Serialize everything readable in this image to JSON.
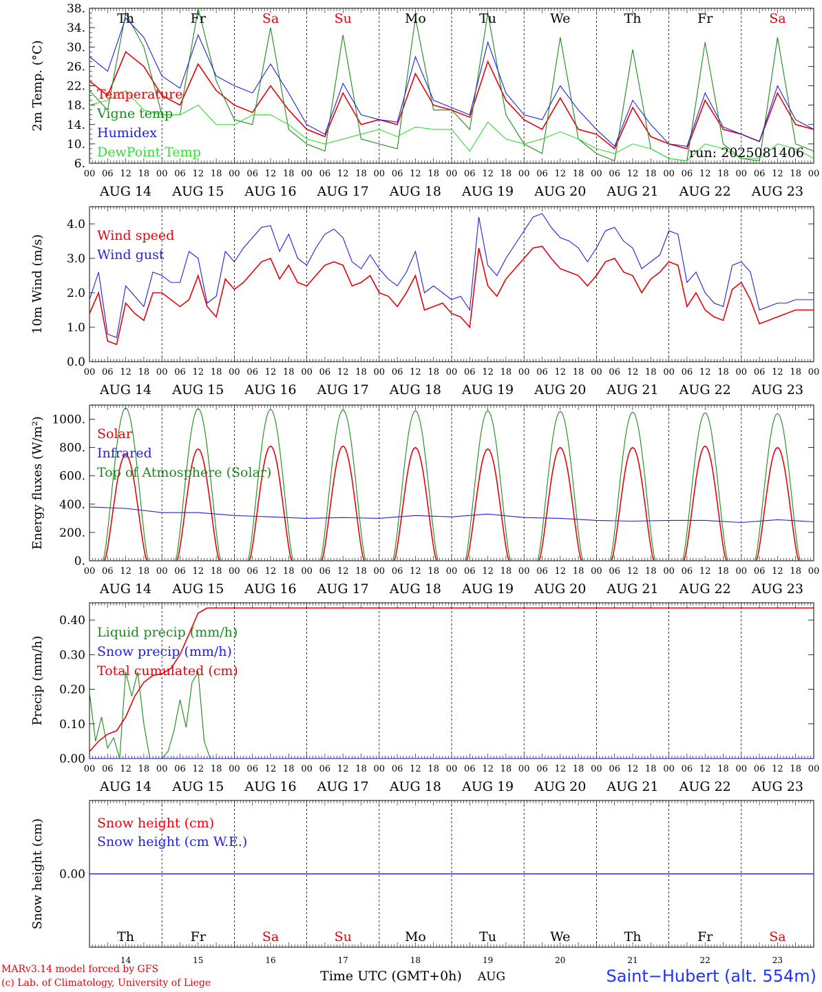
{
  "colors": {
    "red": "#e8000b",
    "green": "#1a8a1a",
    "blue": "#1f1fe0",
    "lightgreen": "#33dd33",
    "black": "#000000"
  },
  "credits": {
    "line1": "MARv3.14 model forced by GFS",
    "line2": "(c) Lab. of Climatology, University of Liege"
  },
  "station": "Saint−Hubert (alt. 554m)",
  "run": "run: 2025081406",
  "x_axis_title": "Time UTC (GMT+0h)",
  "month": "AUG",
  "day_labels": [
    "Th",
    "Fr",
    "Sa",
    "Su",
    "Mo",
    "Tu",
    "We",
    "Th",
    "Fr",
    "Sa"
  ],
  "weekend_days": [
    2,
    3,
    9
  ],
  "date_labels": [
    "AUG 14",
    "AUG 15",
    "AUG 16",
    "AUG 17",
    "AUG 18",
    "AUG 19",
    "AUG 20",
    "AUG 21",
    "AUG 22",
    "AUG 23"
  ],
  "day_numbers": [
    "14",
    "15",
    "16",
    "17",
    "18",
    "19",
    "20",
    "21",
    "22",
    "23"
  ],
  "hour_labels": [
    "00",
    "06",
    "12",
    "18"
  ],
  "chart_data": [
    {
      "type": "line",
      "ylabel": "2m Temp. (°C)",
      "ylim": [
        6,
        38
      ],
      "yticks": [
        "38.",
        "34.",
        "30.",
        "26.",
        "22.",
        "18.",
        "14.",
        "10.",
        "6."
      ],
      "x_unit": "hours since AUG 14 00 UTC",
      "xlim": [
        0,
        240
      ],
      "series": [
        {
          "name": "Temperature",
          "color": "red",
          "x": [
            0,
            6,
            12,
            18,
            24,
            30,
            36,
            42,
            48,
            54,
            60,
            66,
            72,
            78,
            84,
            90,
            96,
            102,
            108,
            114,
            120,
            126,
            132,
            138,
            144,
            150,
            156,
            162,
            168,
            174,
            180,
            186,
            192,
            198,
            204,
            210,
            216,
            222,
            228,
            234,
            240
          ],
          "y": [
            23,
            20,
            29,
            26,
            20,
            18,
            26.5,
            21,
            18,
            16.5,
            22,
            17,
            13,
            11.5,
            20.5,
            14,
            15,
            14,
            24.5,
            18,
            17,
            15.5,
            27,
            19,
            15,
            13,
            19.5,
            13,
            12,
            9,
            17.5,
            11.5,
            10,
            9,
            19,
            13,
            12,
            10.5,
            20.5,
            14,
            13
          ]
        },
        {
          "name": "Vigne temp",
          "color": "green",
          "x": [
            0,
            6,
            12,
            18,
            24,
            30,
            36,
            42,
            48,
            54,
            60,
            66,
            72,
            78,
            84,
            90,
            96,
            102,
            108,
            114,
            120,
            126,
            132,
            138,
            144,
            150,
            156,
            162,
            168,
            174,
            180,
            186,
            192,
            198,
            204,
            210,
            216,
            222,
            228,
            234,
            240
          ],
          "y": [
            21,
            17,
            37,
            30,
            16,
            16,
            38,
            23,
            15,
            14,
            34,
            13,
            10,
            8.5,
            32.5,
            11,
            10,
            9,
            36,
            17,
            17,
            13,
            37,
            16,
            10,
            8,
            32,
            11,
            8,
            6.5,
            29.5,
            9,
            7,
            6.5,
            31,
            10,
            7,
            6.5,
            32,
            10,
            8.5
          ]
        },
        {
          "name": "Humidex",
          "color": "blue",
          "x": [
            0,
            6,
            12,
            18,
            24,
            30,
            36,
            42,
            48,
            54,
            60,
            66,
            72,
            78,
            84,
            90,
            96,
            102,
            108,
            114,
            120,
            126,
            132,
            138,
            144,
            150,
            156,
            162,
            168,
            174,
            180,
            186,
            192,
            198,
            204,
            210,
            216,
            222,
            228,
            234,
            240
          ],
          "y": [
            28,
            25,
            36,
            32,
            24,
            21.5,
            32.5,
            24,
            22,
            20.5,
            26.5,
            20.5,
            14,
            12,
            22.5,
            16,
            15,
            14.5,
            28,
            19,
            17.5,
            16,
            31,
            20.5,
            16,
            15,
            22,
            17,
            13,
            9.5,
            19,
            14,
            10,
            9.5,
            20.5,
            13.5,
            12,
            10.5,
            22,
            15,
            13
          ]
        },
        {
          "name": "DewPoint Temp",
          "color": "lightgreen",
          "x": [
            0,
            6,
            12,
            18,
            24,
            30,
            36,
            42,
            48,
            54,
            60,
            66,
            72,
            78,
            84,
            90,
            96,
            102,
            108,
            114,
            120,
            126,
            132,
            138,
            144,
            150,
            156,
            162,
            168,
            174,
            180,
            186,
            192,
            198,
            204,
            210,
            216,
            222,
            228,
            234,
            240
          ],
          "y": [
            18,
            19,
            21,
            17,
            16,
            16,
            18,
            14,
            14,
            16,
            16,
            14,
            11,
            10,
            11,
            12,
            13,
            11.5,
            13.5,
            13,
            13,
            8.5,
            14.5,
            11,
            10,
            11,
            12.5,
            11,
            9,
            8,
            10,
            9,
            7,
            6.5,
            10,
            9,
            7,
            7,
            10,
            9,
            7
          ]
        }
      ]
    },
    {
      "type": "line",
      "ylabel": "10m Wind (m/s)",
      "ylim": [
        0,
        4.5
      ],
      "yticks": [
        "4.0",
        "3.0",
        "2.0",
        "1.0",
        "0.0"
      ],
      "yvals": [
        4,
        3,
        2,
        1,
        0
      ],
      "x_unit": "hours since AUG 14 00 UTC",
      "xlim": [
        0,
        240
      ],
      "series": [
        {
          "name": "Wind speed",
          "color": "red",
          "x": [
            0,
            3,
            6,
            9,
            12,
            15,
            18,
            21,
            24,
            27,
            30,
            33,
            36,
            39,
            42,
            45,
            48,
            51,
            54,
            57,
            60,
            63,
            66,
            69,
            72,
            75,
            78,
            81,
            84,
            87,
            90,
            93,
            96,
            99,
            102,
            105,
            108,
            111,
            114,
            117,
            120,
            123,
            126,
            129,
            132,
            135,
            138,
            141,
            144,
            147,
            150,
            153,
            156,
            159,
            162,
            165,
            168,
            171,
            174,
            177,
            180,
            183,
            186,
            189,
            192,
            195,
            198,
            201,
            204,
            207,
            210,
            213,
            216,
            219,
            222,
            225,
            228,
            231,
            234,
            237,
            240
          ],
          "y": [
            1.4,
            2.0,
            0.6,
            0.5,
            1.7,
            1.4,
            1.2,
            2.0,
            2.0,
            1.8,
            1.6,
            1.8,
            2.5,
            1.6,
            1.3,
            2.4,
            2.1,
            2.3,
            2.6,
            2.9,
            3.0,
            2.4,
            2.8,
            2.3,
            2.2,
            2.5,
            2.8,
            2.9,
            2.8,
            2.2,
            2.3,
            2.5,
            2.0,
            1.9,
            1.6,
            2.0,
            2.5,
            1.5,
            1.6,
            1.7,
            1.4,
            1.3,
            1.0,
            3.3,
            2.2,
            1.9,
            2.4,
            2.7,
            3.0,
            3.3,
            3.35,
            3.0,
            2.7,
            2.6,
            2.5,
            2.2,
            2.5,
            2.9,
            3.0,
            2.6,
            2.5,
            2.0,
            2.4,
            2.6,
            2.9,
            2.8,
            1.6,
            2.0,
            1.5,
            1.3,
            1.2,
            2.1,
            2.3,
            1.8,
            1.1,
            1.2,
            1.3,
            1.4,
            1.5,
            1.5,
            1.5
          ]
        },
        {
          "name": "Wind gust",
          "color": "blue",
          "x": [
            0,
            3,
            6,
            9,
            12,
            15,
            18,
            21,
            24,
            27,
            30,
            33,
            36,
            39,
            42,
            45,
            48,
            51,
            54,
            57,
            60,
            63,
            66,
            69,
            72,
            75,
            78,
            81,
            84,
            87,
            90,
            93,
            96,
            99,
            102,
            105,
            108,
            111,
            114,
            117,
            120,
            123,
            126,
            129,
            132,
            135,
            138,
            141,
            144,
            147,
            150,
            153,
            156,
            159,
            162,
            165,
            168,
            171,
            174,
            177,
            180,
            183,
            186,
            189,
            192,
            195,
            198,
            201,
            204,
            207,
            210,
            213,
            216,
            219,
            222,
            225,
            228,
            231,
            234,
            237,
            240
          ],
          "y": [
            1.8,
            2.6,
            0.8,
            0.7,
            2.2,
            1.9,
            1.6,
            2.6,
            2.5,
            2.3,
            2.3,
            3.2,
            3.0,
            1.7,
            1.9,
            3.2,
            2.9,
            3.3,
            3.6,
            3.9,
            3.95,
            3.2,
            3.7,
            3.0,
            2.8,
            3.3,
            3.7,
            3.85,
            3.6,
            2.9,
            2.7,
            3.1,
            2.7,
            2.4,
            2.2,
            2.6,
            3.2,
            2.0,
            2.2,
            2.0,
            1.8,
            1.9,
            1.5,
            4.2,
            2.8,
            2.5,
            3.0,
            3.4,
            3.8,
            4.2,
            4.3,
            3.9,
            3.6,
            3.5,
            3.3,
            2.9,
            3.3,
            3.8,
            3.9,
            3.5,
            3.3,
            2.7,
            2.9,
            3.1,
            3.8,
            3.7,
            2.3,
            2.6,
            2.0,
            1.7,
            1.6,
            2.8,
            2.9,
            2.6,
            1.5,
            1.6,
            1.7,
            1.7,
            1.8,
            1.8,
            1.8
          ]
        }
      ]
    },
    {
      "type": "line",
      "ylabel": "Energy fluxes (W/m²)",
      "ylim": [
        0,
        1100
      ],
      "yticks": [
        "1000.",
        "800.",
        "600.",
        "400.",
        "200.",
        "0."
      ],
      "yvals": [
        1000,
        800,
        600,
        400,
        200,
        0
      ],
      "x_unit": "hours since AUG 14 00 UTC",
      "xlim": [
        0,
        240
      ],
      "series": [
        {
          "name": "Solar",
          "color": "red",
          "daily_peak": [
            750,
            790,
            810,
            810,
            800,
            790,
            800,
            800,
            810,
            800
          ],
          "sunrise_h": 5,
          "sunset_h": 19
        },
        {
          "name": "Infrared",
          "color": "blue",
          "x": [
            0,
            12,
            24,
            36,
            48,
            60,
            72,
            84,
            96,
            108,
            120,
            132,
            144,
            156,
            168,
            180,
            192,
            204,
            216,
            228,
            240
          ],
          "y": [
            380,
            370,
            340,
            340,
            320,
            310,
            300,
            305,
            300,
            320,
            310,
            330,
            305,
            300,
            285,
            280,
            285,
            285,
            270,
            290,
            275
          ]
        },
        {
          "name": "Top of Atmosphere (Solar)",
          "color": "green",
          "daily_peak": [
            1080,
            1075,
            1070,
            1065,
            1060,
            1060,
            1055,
            1050,
            1045,
            1040
          ],
          "sunrise_h": 4.5,
          "sunset_h": 19.5
        }
      ]
    },
    {
      "type": "line",
      "ylabel": "Precip (mm/h)",
      "ylim": [
        0,
        0.45
      ],
      "yticks": [
        "0.40",
        "0.30",
        "0.20",
        "0.10",
        "0.00"
      ],
      "yvals": [
        0.4,
        0.3,
        0.2,
        0.1,
        0
      ],
      "x_unit": "hours since AUG 14 00 UTC",
      "xlim": [
        0,
        240
      ],
      "series": [
        {
          "name": "Liquid precip (mm/h)",
          "color": "green",
          "x": [
            0,
            2,
            4,
            6,
            8,
            10,
            12,
            14,
            16,
            18,
            20,
            22,
            24,
            26,
            28,
            30,
            32,
            34,
            36,
            38,
            40,
            42,
            44
          ],
          "y": [
            0.19,
            0.05,
            0.12,
            0.03,
            0.06,
            0.0,
            0.25,
            0.18,
            0.25,
            0.1,
            0.0,
            0.0,
            0.0,
            0.02,
            0.08,
            0.17,
            0.09,
            0.22,
            0.25,
            0.05,
            0.0,
            0.0,
            0.0
          ]
        },
        {
          "name": "Snow precip (mm/h)",
          "color": "blue",
          "x": [
            0,
            240
          ],
          "y": [
            0,
            0
          ]
        },
        {
          "name": "Total cumulated (cm)",
          "color": "red",
          "x": [
            0,
            3,
            6,
            9,
            12,
            15,
            18,
            21,
            24,
            27,
            30,
            33,
            36,
            39,
            42,
            240
          ],
          "y": [
            0.02,
            0.05,
            0.07,
            0.08,
            0.12,
            0.18,
            0.22,
            0.24,
            0.245,
            0.26,
            0.3,
            0.36,
            0.42,
            0.435,
            0.435,
            0.435
          ]
        }
      ]
    },
    {
      "type": "line",
      "ylabel": "Snow height (cm)",
      "ylim": [
        -0.2,
        0.2
      ],
      "yticks": [
        "0.00"
      ],
      "yvals": [
        0
      ],
      "x_unit": "hours since AUG 14 00 UTC",
      "xlim": [
        0,
        240
      ],
      "series": [
        {
          "name": "Snow height (cm)",
          "color": "red",
          "x": [
            0,
            240
          ],
          "y": [
            0,
            0
          ]
        },
        {
          "name": "Snow height (cm W.E.)",
          "color": "blue",
          "x": [
            0,
            240
          ],
          "y": [
            0,
            0
          ]
        }
      ]
    }
  ]
}
